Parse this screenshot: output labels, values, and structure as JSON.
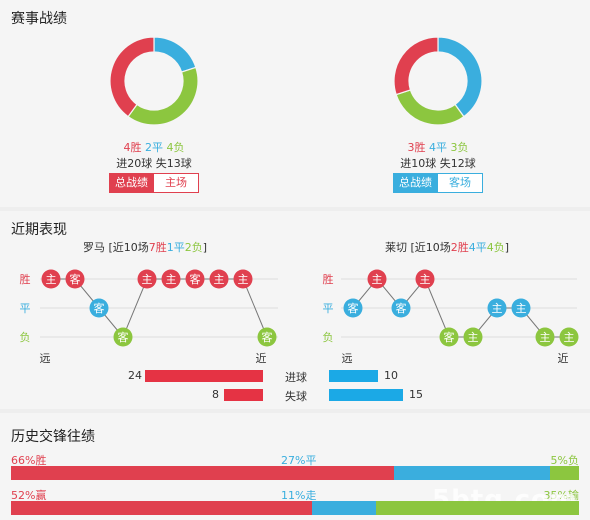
{
  "colors": {
    "win": "#e0404f",
    "draw": "#3aaede",
    "loss": "#8cc63f",
    "grid": "#dddddd"
  },
  "season": {
    "title": "赛事战绩",
    "home": {
      "w": 4,
      "d": 2,
      "l": 4,
      "w_text": "4胜",
      "d_text": "2平",
      "l_text": "4负",
      "goals_text": "进20球 失13球",
      "btn_total": "总战绩",
      "btn_side": "主场"
    },
    "away": {
      "w": 3,
      "d": 4,
      "l": 3,
      "w_text": "3胜",
      "d_text": "4平",
      "l_text": "3负",
      "goals_text": "进10球 失12球",
      "btn_total": "总战绩",
      "btn_side": "客场"
    }
  },
  "form": {
    "title": "近期表现",
    "home": {
      "team": "罗马",
      "pre": " [近10场",
      "w": "7胜",
      "d": "1平",
      "l": "2负",
      "post": "]",
      "results": [
        "w",
        "w",
        "d",
        "l",
        "w",
        "w",
        "w",
        "w",
        "w",
        "l"
      ],
      "venues": [
        "主",
        "客",
        "客",
        "客",
        "主",
        "主",
        "客",
        "主",
        "主",
        "客"
      ]
    },
    "away": {
      "team": "莱切",
      "pre": " [近10场",
      "w": "2胜",
      "d": "4平",
      "l": "4负",
      "post": "]",
      "results": [
        "d",
        "w",
        "d",
        "w",
        "l",
        "l",
        "d",
        "d",
        "l",
        "l"
      ],
      "venues": [
        "客",
        "主",
        "客",
        "主",
        "客",
        "主",
        "主",
        "主",
        "主",
        "主"
      ]
    },
    "axis": {
      "win": "胜",
      "draw": "平",
      "loss": "负",
      "far": "远",
      "near": "近"
    },
    "stats": {
      "for_label": "进球",
      "against_label": "失球",
      "home_for": 24,
      "home_against": 8,
      "away_for": 10,
      "away_against": 15
    }
  },
  "h2h": {
    "title": "历史交锋往绩",
    "row1": {
      "win": 66,
      "draw": 27,
      "loss": 5,
      "win_text": "66%胜",
      "draw_text": "27%平",
      "loss_text": "5%负"
    },
    "row2": {
      "win": 52,
      "draw": 11,
      "loss": 35,
      "win_text": "52%赢",
      "draw_text": "11%走",
      "loss_text": "35%输"
    }
  },
  "watermark": "5btq.com"
}
